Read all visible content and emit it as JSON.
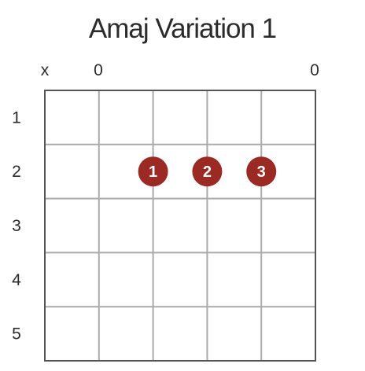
{
  "title": "Amaj Variation 1",
  "string_markers": [
    "x",
    "0",
    "",
    "",
    "",
    "0"
  ],
  "fret_numbers": [
    "1",
    "2",
    "3",
    "4",
    "5"
  ],
  "num_strings": 6,
  "num_frets": 5,
  "finger_positions": [
    {
      "string": 3,
      "fret": 2,
      "finger": "1"
    },
    {
      "string": 4,
      "fret": 2,
      "finger": "2"
    },
    {
      "string": 5,
      "fret": 2,
      "finger": "3"
    }
  ],
  "colors": {
    "dot": "#9b2a24",
    "grid": "#aaaaaa",
    "border": "#555555",
    "text": "#2b2b2b"
  }
}
